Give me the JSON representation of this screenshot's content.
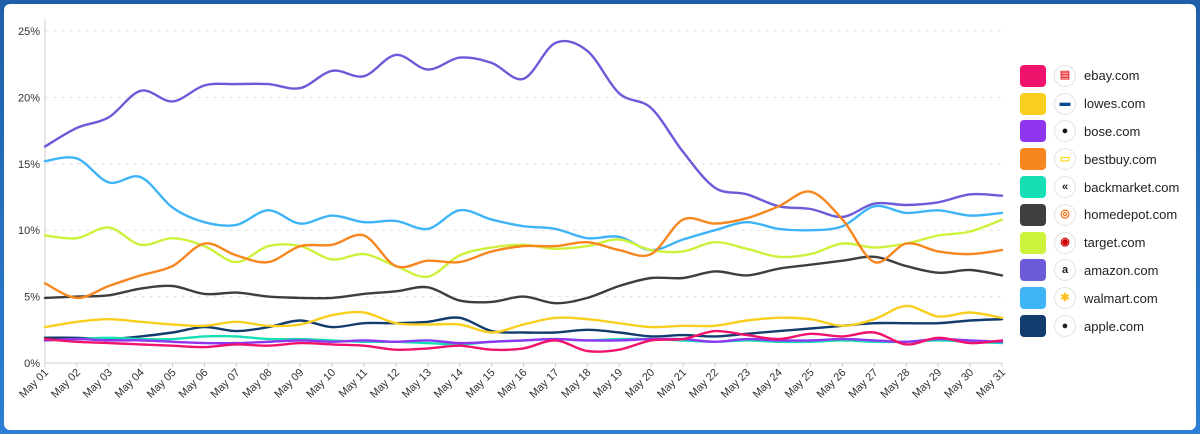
{
  "chart_data": {
    "type": "line",
    "title": "",
    "xlabel": "",
    "ylabel": "",
    "ylim": [
      0,
      25
    ],
    "yticks": [
      "0%",
      "5%",
      "10%",
      "15%",
      "20%",
      "25%"
    ],
    "grid": true,
    "legend_position": "right",
    "categories": [
      "May 01",
      "May 02",
      "May 03",
      "May 04",
      "May 05",
      "May 06",
      "May 07",
      "May 08",
      "May 09",
      "May 10",
      "May 11",
      "May 12",
      "May 13",
      "May 14",
      "May 15",
      "May 16",
      "May 17",
      "May 18",
      "May 19",
      "May 20",
      "May 21",
      "May 22",
      "May 23",
      "May 24",
      "May 25",
      "May 26",
      "May 27",
      "May 28",
      "May 29",
      "May 30",
      "May 31"
    ],
    "series": [
      {
        "name": "ebay.com",
        "color": "#f0136d",
        "icon": "bag-icon",
        "values": [
          1.8,
          1.6,
          1.5,
          1.4,
          1.3,
          1.2,
          1.4,
          1.3,
          1.5,
          1.4,
          1.3,
          1.0,
          1.1,
          1.3,
          1.0,
          1.1,
          1.7,
          0.9,
          1.0,
          1.7,
          1.8,
          2.4,
          2.1,
          1.8,
          2.2,
          2.0,
          2.3,
          1.4,
          1.9,
          1.5,
          1.7
        ]
      },
      {
        "name": "lowes.com",
        "color": "#f9cf1f",
        "icon": "house-icon",
        "values": [
          2.7,
          3.1,
          3.3,
          3.1,
          2.9,
          2.8,
          3.1,
          2.8,
          2.9,
          3.6,
          3.8,
          3.0,
          2.9,
          2.9,
          2.3,
          2.9,
          3.4,
          3.3,
          3.0,
          2.7,
          2.8,
          2.8,
          3.2,
          3.4,
          3.3,
          2.8,
          3.3,
          4.3,
          3.5,
          3.8,
          3.4
        ]
      },
      {
        "name": "bose.com",
        "color": "#9035ef",
        "icon": "bose-icon",
        "values": [
          1.7,
          1.8,
          1.7,
          1.7,
          1.6,
          1.5,
          1.5,
          1.6,
          1.7,
          1.6,
          1.7,
          1.6,
          1.7,
          1.5,
          1.6,
          1.7,
          1.8,
          1.7,
          1.7,
          1.8,
          1.8,
          1.6,
          1.8,
          1.7,
          1.7,
          1.8,
          1.7,
          1.6,
          1.8,
          1.7,
          1.6
        ]
      },
      {
        "name": "bestbuy.com",
        "color": "#f7861f",
        "icon": "tag-icon",
        "values": [
          6.0,
          4.9,
          5.8,
          6.6,
          7.3,
          9.0,
          8.1,
          7.6,
          8.8,
          8.9,
          9.6,
          7.3,
          7.7,
          7.6,
          8.4,
          8.8,
          8.8,
          9.1,
          8.5,
          8.2,
          10.8,
          10.5,
          10.9,
          11.8,
          12.9,
          10.8,
          7.6,
          9.0,
          8.4,
          8.2,
          8.5
        ]
      },
      {
        "name": "backmarket.com",
        "color": "#16dfb6",
        "icon": "double-chevron-left-icon",
        "values": [
          1.7,
          1.8,
          1.9,
          1.8,
          1.8,
          2.0,
          2.0,
          1.8,
          1.8,
          1.7,
          1.6,
          1.6,
          1.5,
          1.4,
          1.6,
          1.7,
          1.8,
          1.7,
          1.8,
          1.8,
          1.7,
          1.6,
          1.7,
          1.6,
          1.6,
          1.7,
          1.6,
          1.6,
          1.7,
          1.6,
          1.5
        ]
      },
      {
        "name": "homedepot.com",
        "color": "#3e3e40",
        "icon": "grid-logo-icon",
        "values": [
          4.9,
          5.0,
          5.1,
          5.6,
          5.8,
          5.2,
          5.3,
          5.0,
          4.9,
          4.9,
          5.2,
          5.4,
          5.7,
          4.7,
          4.6,
          5.0,
          4.5,
          4.9,
          5.8,
          6.4,
          6.4,
          6.9,
          6.6,
          7.1,
          7.4,
          7.7,
          8.0,
          7.3,
          6.8,
          7.0,
          6.6
        ]
      },
      {
        "name": "target.com",
        "color": "#ccf23c",
        "icon": "target-icon",
        "values": [
          9.6,
          9.4,
          10.2,
          8.9,
          9.4,
          8.8,
          7.6,
          8.8,
          8.8,
          7.8,
          8.2,
          7.3,
          6.5,
          8.1,
          8.7,
          8.9,
          8.6,
          8.8,
          9.3,
          8.5,
          8.4,
          9.1,
          8.6,
          8.0,
          8.2,
          9.0,
          8.7,
          9.0,
          9.6,
          9.9,
          10.8
        ]
      },
      {
        "name": "amazon.com",
        "color": "#6b5bd9",
        "icon": "amazon-icon",
        "values": [
          16.3,
          17.7,
          18.5,
          20.5,
          19.7,
          20.9,
          21.0,
          21.0,
          20.7,
          22.0,
          21.6,
          23.2,
          22.1,
          23.0,
          22.6,
          21.4,
          24.1,
          23.5,
          20.3,
          19.2,
          15.9,
          13.2,
          12.7,
          11.8,
          11.6,
          11.0,
          12.0,
          11.9,
          12.1,
          12.7,
          12.6
        ]
      },
      {
        "name": "walmart.com",
        "color": "#3eb4f7",
        "icon": "spark-icon",
        "values": [
          15.2,
          15.4,
          13.6,
          14.0,
          11.7,
          10.6,
          10.4,
          11.5,
          10.5,
          11.1,
          10.6,
          10.7,
          10.1,
          11.5,
          10.8,
          10.3,
          10.1,
          9.4,
          9.5,
          8.5,
          9.3,
          10.0,
          10.6,
          10.1,
          10.0,
          10.3,
          11.8,
          11.3,
          11.5,
          11.1,
          11.3
        ]
      },
      {
        "name": "apple.com",
        "color": "#123c6e",
        "icon": "apple-icon",
        "values": [
          1.9,
          1.9,
          1.8,
          2.0,
          2.3,
          2.7,
          2.4,
          2.7,
          3.2,
          2.7,
          3.0,
          3.0,
          3.1,
          3.4,
          2.4,
          2.3,
          2.3,
          2.5,
          2.3,
          2.0,
          2.1,
          2.0,
          2.2,
          2.4,
          2.6,
          2.8,
          3.0,
          3.0,
          3.0,
          3.2,
          3.3
        ]
      }
    ]
  }
}
